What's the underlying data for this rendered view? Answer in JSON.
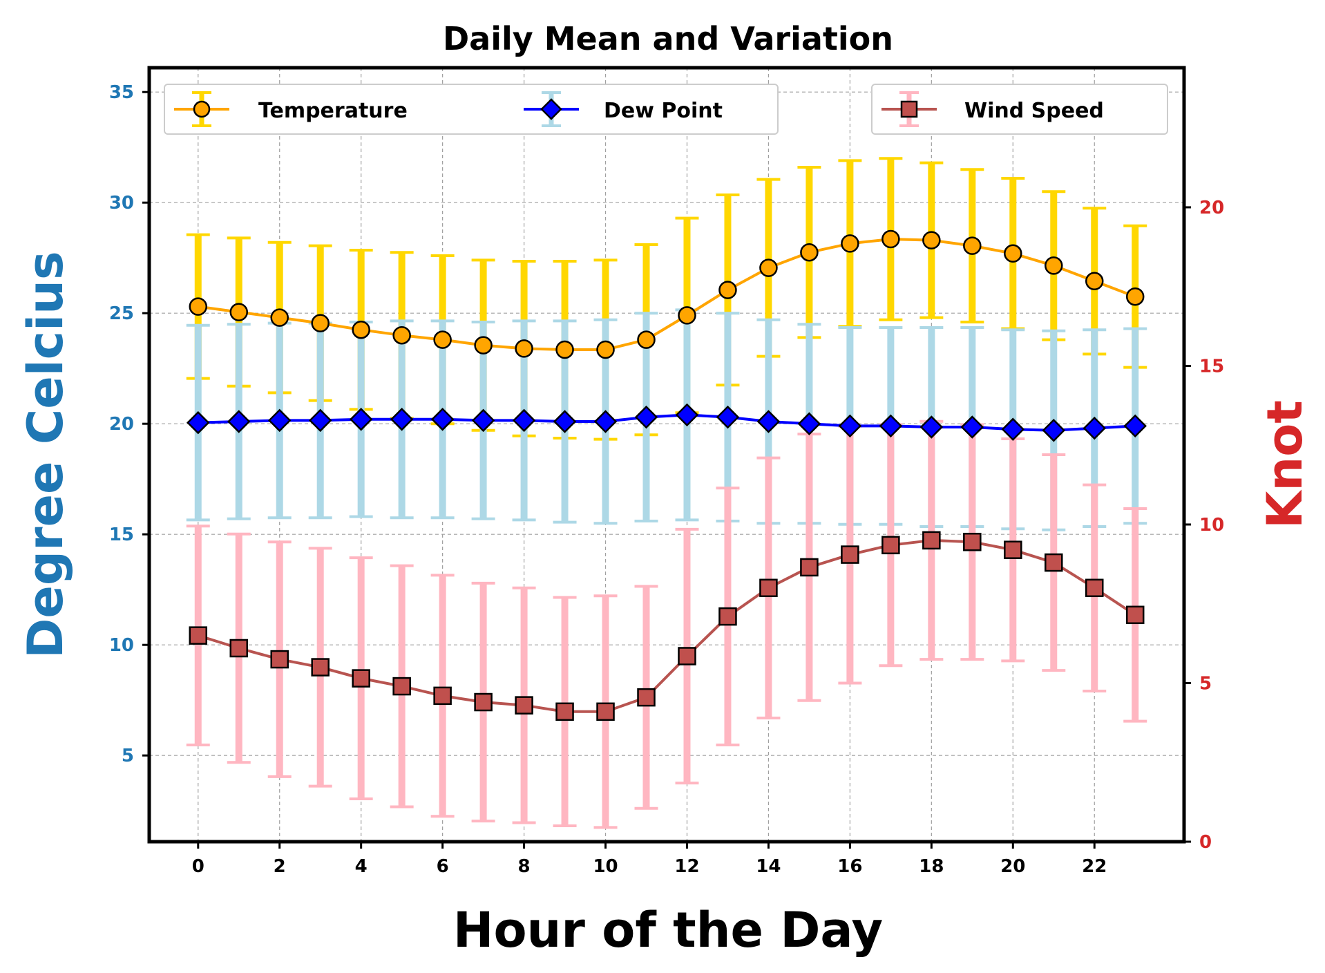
{
  "chart_data": {
    "type": "line",
    "title": "Daily Mean and Variation",
    "xlabel": "Hour of the Day",
    "ylabel_left": "Degree Celcius",
    "ylabel_right": "Knot",
    "x": [
      0,
      1,
      2,
      3,
      4,
      5,
      6,
      7,
      8,
      9,
      10,
      11,
      12,
      13,
      14,
      15,
      16,
      17,
      18,
      19,
      20,
      21,
      22,
      23
    ],
    "x_ticks": [
      "0",
      "2",
      "4",
      "6",
      "8",
      "10",
      "12",
      "14",
      "16",
      "18",
      "20",
      "22"
    ],
    "x_tick_values": [
      0,
      2,
      4,
      6,
      8,
      10,
      12,
      14,
      16,
      18,
      20,
      22
    ],
    "xlim": [
      -1.2,
      24.2
    ],
    "ylim_left": [
      1.1,
      36.1
    ],
    "ylim_right": [
      0,
      24.4
    ],
    "y_ticks_left": [
      "5",
      "10",
      "15",
      "20",
      "25",
      "30",
      "35"
    ],
    "y_tick_values_left": [
      5,
      10,
      15,
      20,
      25,
      30,
      35
    ],
    "y_ticks_right": [
      "0",
      "5",
      "10",
      "15",
      "20"
    ],
    "y_tick_values_right": [
      0,
      5,
      10,
      15,
      20
    ],
    "grid": true,
    "legend_left_placement": "top-left",
    "legend_right_placement": "top-right",
    "series": [
      {
        "name": "Temperature",
        "axis": "left",
        "line_color": "#ffa500",
        "marker": "circle",
        "marker_face": "#ffa500",
        "error_color": "#ffd700",
        "values": [
          25.3,
          25.05,
          24.8,
          24.55,
          24.25,
          24.0,
          23.8,
          23.55,
          23.4,
          23.35,
          23.35,
          23.8,
          24.9,
          26.05,
          27.05,
          27.75,
          28.15,
          28.35,
          28.3,
          28.05,
          27.7,
          27.15,
          26.45,
          25.75
        ],
        "errors": [
          3.25,
          3.35,
          3.4,
          3.5,
          3.6,
          3.75,
          3.8,
          3.85,
          3.95,
          4.0,
          4.05,
          4.3,
          4.4,
          4.3,
          4.0,
          3.85,
          3.75,
          3.65,
          3.5,
          3.45,
          3.4,
          3.35,
          3.3,
          3.2
        ]
      },
      {
        "name": "Dew Point",
        "axis": "left",
        "line_color": "#0000ff",
        "marker": "diamond",
        "marker_face": "#0000ff",
        "error_color": "#add8e6",
        "values": [
          20.05,
          20.1,
          20.15,
          20.15,
          20.2,
          20.2,
          20.2,
          20.15,
          20.15,
          20.1,
          20.1,
          20.3,
          20.4,
          20.3,
          20.1,
          20.0,
          19.9,
          19.9,
          19.85,
          19.85,
          19.75,
          19.7,
          19.8,
          19.9
        ],
        "errors": [
          4.4,
          4.4,
          4.4,
          4.4,
          4.4,
          4.45,
          4.45,
          4.45,
          4.5,
          4.55,
          4.6,
          4.7,
          4.75,
          4.7,
          4.6,
          4.5,
          4.45,
          4.45,
          4.5,
          4.5,
          4.5,
          4.5,
          4.45,
          4.4
        ]
      },
      {
        "name": "Wind Speed",
        "axis": "right",
        "line_color": "#b85450",
        "marker": "square",
        "marker_face": "#c0504d",
        "error_color": "#ffb6c1",
        "values": [
          6.5,
          6.1,
          5.75,
          5.5,
          5.15,
          4.9,
          4.6,
          4.4,
          4.3,
          4.1,
          4.1,
          4.55,
          5.85,
          7.1,
          8.0,
          8.65,
          9.05,
          9.35,
          9.5,
          9.45,
          9.2,
          8.8,
          8.0,
          7.15
        ],
        "errors": [
          3.45,
          3.6,
          3.7,
          3.75,
          3.8,
          3.8,
          3.8,
          3.75,
          3.7,
          3.6,
          3.65,
          3.5,
          4.0,
          4.05,
          4.1,
          4.2,
          4.05,
          3.8,
          3.75,
          3.7,
          3.5,
          3.4,
          3.25,
          3.35
        ]
      }
    ]
  }
}
